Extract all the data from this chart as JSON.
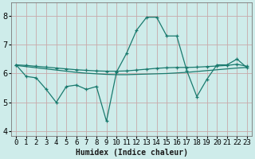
{
  "xlabel": "Humidex (Indice chaleur)",
  "background_color": "#ceecea",
  "grid_color": "#c8aaaa",
  "line_color": "#1a7a6e",
  "xlim": [
    -0.5,
    23.5
  ],
  "ylim": [
    3.85,
    8.45
  ],
  "yticks": [
    4,
    5,
    6,
    7,
    8
  ],
  "xticks": [
    0,
    1,
    2,
    3,
    4,
    5,
    6,
    7,
    8,
    9,
    10,
    11,
    12,
    13,
    14,
    15,
    16,
    17,
    18,
    19,
    20,
    21,
    22,
    23
  ],
  "series1_x": [
    0,
    1,
    2,
    3,
    4,
    5,
    6,
    7,
    8,
    9,
    10,
    11,
    12,
    13,
    14,
    15,
    16,
    17,
    18,
    19,
    20,
    21,
    22,
    23
  ],
  "series1_y": [
    6.3,
    6.28,
    6.25,
    6.22,
    6.19,
    6.16,
    6.13,
    6.11,
    6.09,
    6.08,
    6.08,
    6.09,
    6.12,
    6.15,
    6.18,
    6.2,
    6.21,
    6.21,
    6.22,
    6.24,
    6.26,
    6.28,
    6.32,
    6.25
  ],
  "series2_x": [
    0,
    1,
    2,
    3,
    4,
    5,
    6,
    7,
    8,
    9,
    10,
    11,
    12,
    13,
    14,
    15,
    16,
    17,
    18,
    19,
    20,
    21,
    22,
    23
  ],
  "series2_y": [
    6.28,
    6.24,
    6.2,
    6.16,
    6.12,
    6.08,
    6.04,
    6.01,
    5.99,
    5.97,
    5.96,
    5.96,
    5.97,
    5.98,
    5.99,
    6.0,
    6.02,
    6.04,
    6.07,
    6.1,
    6.13,
    6.16,
    6.19,
    6.21
  ],
  "series3_x": [
    0,
    1,
    2,
    3,
    4,
    5,
    6,
    7,
    8,
    9,
    10,
    11,
    12,
    13,
    14,
    15,
    16,
    17,
    18,
    19,
    20,
    21,
    22,
    23
  ],
  "series3_y": [
    6.3,
    5.9,
    5.85,
    5.45,
    5.0,
    5.55,
    5.6,
    5.45,
    5.55,
    4.35,
    6.05,
    6.7,
    7.5,
    7.95,
    7.95,
    7.3,
    7.3,
    6.1,
    5.2,
    5.8,
    6.3,
    6.3,
    6.5,
    6.2
  ],
  "xlabel_fontsize": 7,
  "tick_fontsize": 6.5
}
